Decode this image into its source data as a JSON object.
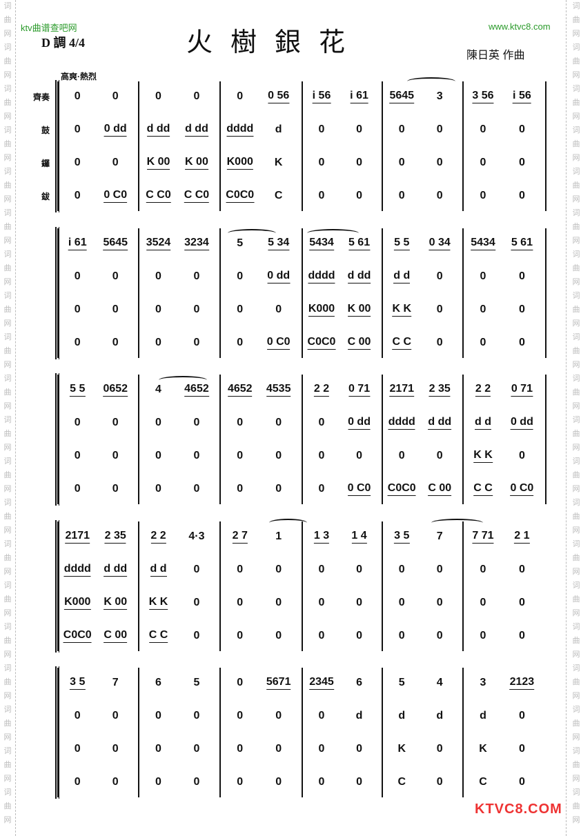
{
  "header": {
    "site_left": "ktv曲谱查吧网",
    "site_right": "www.ktvc8.com",
    "key": "D 調 4/4",
    "title": "火樹銀花",
    "composer": "陳日英  作曲",
    "tempo": "高爽·熱烈"
  },
  "instruments": [
    "齊奏",
    "鼓",
    "鑼",
    "鈸"
  ],
  "watermark": "词曲网",
  "logo": "KTVC8.COM",
  "systems": [
    {
      "rows": [
        [
          [
            "0",
            "0"
          ],
          [
            "0",
            "0"
          ],
          [
            "0",
            "0 56"
          ],
          [
            "i 56",
            "i 61"
          ],
          [
            "5645",
            "3"
          ],
          [
            "3 56",
            "i 56"
          ]
        ],
        [
          [
            "0",
            "0 dd"
          ],
          [
            "d dd",
            "d dd"
          ],
          [
            "dddd",
            "d"
          ],
          [
            "0",
            "0"
          ],
          [
            "0",
            "0"
          ],
          [
            "0",
            "0"
          ]
        ],
        [
          [
            "0",
            "0"
          ],
          [
            "K 00",
            "K 00"
          ],
          [
            "K000",
            "K"
          ],
          [
            "0",
            "0"
          ],
          [
            "0",
            "0"
          ],
          [
            "0",
            "0"
          ]
        ],
        [
          [
            "0",
            "0 C0"
          ],
          [
            "C C0",
            "C C0"
          ],
          [
            "C0C0",
            "C"
          ],
          [
            "0",
            "0"
          ],
          [
            "0",
            "0"
          ],
          [
            "0",
            "0"
          ]
        ]
      ]
    },
    {
      "rows": [
        [
          [
            "i 61",
            "5645"
          ],
          [
            "3524",
            "3234"
          ],
          [
            "5",
            "5 34"
          ],
          [
            "5434",
            "5 61"
          ],
          [
            "5 5",
            "0 34"
          ],
          [
            "5434",
            "5 61"
          ]
        ],
        [
          [
            "0",
            "0"
          ],
          [
            "0",
            "0"
          ],
          [
            "0",
            "0 dd"
          ],
          [
            "dddd",
            "d dd"
          ],
          [
            "d d",
            "0"
          ],
          [
            "0",
            "0"
          ]
        ],
        [
          [
            "0",
            "0"
          ],
          [
            "0",
            "0"
          ],
          [
            "0",
            "0"
          ],
          [
            "K000",
            "K 00"
          ],
          [
            "K K",
            "0"
          ],
          [
            "0",
            "0"
          ]
        ],
        [
          [
            "0",
            "0"
          ],
          [
            "0",
            "0"
          ],
          [
            "0",
            "0 C0"
          ],
          [
            "C0C0",
            "C 00"
          ],
          [
            "C C",
            "0"
          ],
          [
            "0",
            "0"
          ]
        ]
      ]
    },
    {
      "rows": [
        [
          [
            "5 5",
            "0652"
          ],
          [
            "4",
            "4652"
          ],
          [
            "4652",
            "4535"
          ],
          [
            "2 2",
            "0 71"
          ],
          [
            "2171",
            "2 35"
          ],
          [
            "2 2",
            "0 71"
          ]
        ],
        [
          [
            "0",
            "0"
          ],
          [
            "0",
            "0"
          ],
          [
            "0",
            "0"
          ],
          [
            "0",
            "0 dd"
          ],
          [
            "dddd",
            "d dd"
          ],
          [
            "d d",
            "0 dd"
          ]
        ],
        [
          [
            "0",
            "0"
          ],
          [
            "0",
            "0"
          ],
          [
            "0",
            "0"
          ],
          [
            "0",
            "0"
          ],
          [
            "0",
            "0"
          ],
          [
            "K K",
            "0"
          ]
        ],
        [
          [
            "0",
            "0"
          ],
          [
            "0",
            "0"
          ],
          [
            "0",
            "0"
          ],
          [
            "0",
            "0 C0"
          ],
          [
            "C0C0",
            "C 00"
          ],
          [
            "C C",
            "0 C0"
          ]
        ]
      ]
    },
    {
      "rows": [
        [
          [
            "2171",
            "2 35"
          ],
          [
            "2 2",
            "4·3"
          ],
          [
            "2 7",
            "1"
          ],
          [
            "1 3",
            "1 4"
          ],
          [
            "3 5",
            "7"
          ],
          [
            "7 71",
            "2 1"
          ]
        ],
        [
          [
            "dddd",
            "d dd"
          ],
          [
            "d d",
            "0"
          ],
          [
            "0",
            "0"
          ],
          [
            "0",
            "0"
          ],
          [
            "0",
            "0"
          ],
          [
            "0",
            "0"
          ]
        ],
        [
          [
            "K000",
            "K 00"
          ],
          [
            "K K",
            "0"
          ],
          [
            "0",
            "0"
          ],
          [
            "0",
            "0"
          ],
          [
            "0",
            "0"
          ],
          [
            "0",
            "0"
          ]
        ],
        [
          [
            "C0C0",
            "C 00"
          ],
          [
            "C C",
            "0"
          ],
          [
            "0",
            "0"
          ],
          [
            "0",
            "0"
          ],
          [
            "0",
            "0"
          ],
          [
            "0",
            "0"
          ]
        ]
      ]
    },
    {
      "rows": [
        [
          [
            "3 5",
            "7"
          ],
          [
            "6",
            "5"
          ],
          [
            "0",
            "5671"
          ],
          [
            "2345",
            "6"
          ],
          [
            "5",
            "4"
          ],
          [
            "3",
            "2123"
          ]
        ],
        [
          [
            "0",
            "0"
          ],
          [
            "0",
            "0"
          ],
          [
            "0",
            "0"
          ],
          [
            "0",
            "d"
          ],
          [
            "d",
            "d"
          ],
          [
            "d",
            "0"
          ]
        ],
        [
          [
            "0",
            "0"
          ],
          [
            "0",
            "0"
          ],
          [
            "0",
            "0"
          ],
          [
            "0",
            "0"
          ],
          [
            "K",
            "0"
          ],
          [
            "K",
            "0"
          ]
        ],
        [
          [
            "0",
            "0"
          ],
          [
            "0",
            "0"
          ],
          [
            "0",
            "0"
          ],
          [
            "0",
            "0"
          ],
          [
            "C",
            "0"
          ],
          [
            "C",
            "0"
          ]
        ]
      ]
    }
  ]
}
